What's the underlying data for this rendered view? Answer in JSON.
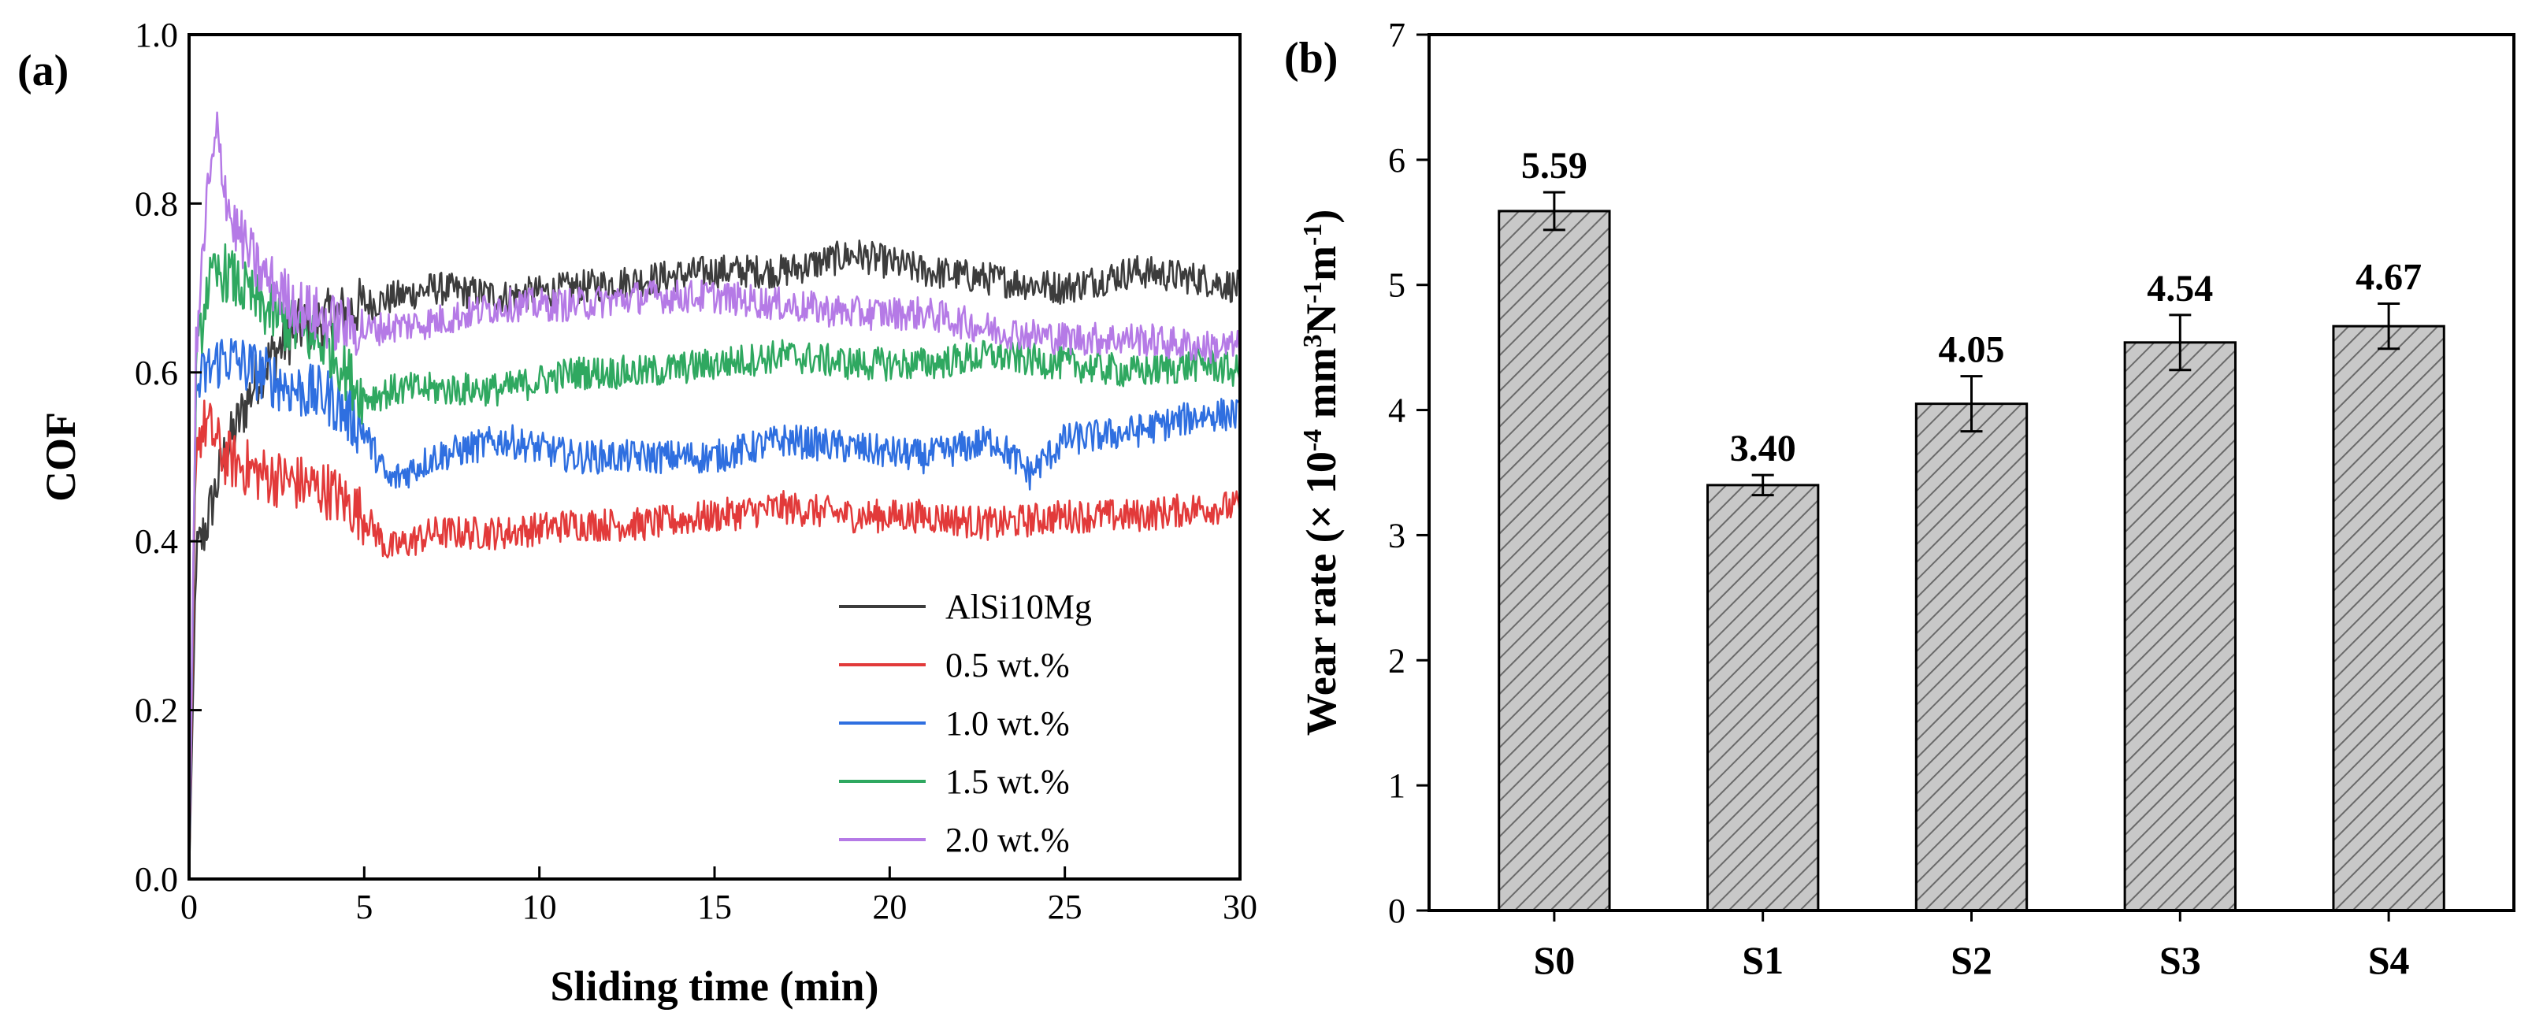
{
  "colors": {
    "AlSi10Mg": "#3c3c3c",
    "0.5 wt.%": "#e23a3a",
    "1.0 wt.%": "#2f6fe0",
    "1.5 wt.%": "#2fa860",
    "2.0 wt.%": "#b57ae6",
    "bar_fill": "#c8c8c8",
    "bar_hatch": "#6a6a6a"
  },
  "chart_data": [
    {
      "panel_label": "(a)",
      "type": "line",
      "xlabel": "Sliding time (min)",
      "ylabel": "COF",
      "xlim": [
        0,
        30
      ],
      "ylim": [
        0.0,
        1.0
      ],
      "xticks": [
        "0",
        "5",
        "10",
        "15",
        "20",
        "25",
        "30"
      ],
      "yticks": [
        "0.0",
        "0.2",
        "0.4",
        "0.6",
        "0.8",
        "1.0"
      ],
      "grid": false,
      "legend_position": "lower-right",
      "series": [
        {
          "name": "AlSi10Mg",
          "x": [
            0,
            0.2,
            0.5,
            1.0,
            2.0,
            3.0,
            5.0,
            7.0,
            9.0,
            11.0,
            13.0,
            15.0,
            17.0,
            19.0,
            21.0,
            23.0,
            25.0,
            27.0,
            29.0,
            30.0
          ],
          "values": [
            0.0,
            0.38,
            0.42,
            0.5,
            0.6,
            0.65,
            0.68,
            0.7,
            0.69,
            0.7,
            0.71,
            0.72,
            0.72,
            0.74,
            0.72,
            0.71,
            0.7,
            0.72,
            0.71,
            0.7
          ]
        },
        {
          "name": "0.5 wt.%",
          "x": [
            0,
            0.2,
            0.5,
            1.0,
            2.0,
            3.0,
            4.0,
            5.0,
            5.7,
            7.0,
            9.0,
            11.0,
            13.0,
            15.0,
            17.0,
            19.0,
            21.0,
            23.0,
            25.0,
            27.0,
            29.0,
            30.0
          ],
          "values": [
            0.0,
            0.52,
            0.54,
            0.5,
            0.48,
            0.47,
            0.46,
            0.43,
            0.39,
            0.41,
            0.41,
            0.42,
            0.42,
            0.43,
            0.44,
            0.43,
            0.43,
            0.42,
            0.43,
            0.43,
            0.44,
            0.44
          ]
        },
        {
          "name": "1.0 wt.%",
          "x": [
            0,
            0.2,
            0.5,
            1.0,
            2.0,
            3.0,
            4.0,
            5.0,
            5.7,
            7.0,
            9.0,
            11.0,
            13.0,
            15.0,
            17.0,
            19.0,
            21.0,
            23.0,
            24.0,
            25.0,
            27.0,
            29.0,
            30.0
          ],
          "values": [
            0.0,
            0.58,
            0.6,
            0.62,
            0.6,
            0.58,
            0.57,
            0.53,
            0.47,
            0.5,
            0.52,
            0.5,
            0.5,
            0.5,
            0.52,
            0.51,
            0.5,
            0.52,
            0.48,
            0.52,
            0.53,
            0.55,
            0.55
          ]
        },
        {
          "name": "1.5 wt.%",
          "x": [
            0,
            0.2,
            0.5,
            1.0,
            2.0,
            3.0,
            4.0,
            5.0,
            6.0,
            7.0,
            9.0,
            11.0,
            13.0,
            15.0,
            17.0,
            19.0,
            21.0,
            23.0,
            25.0,
            27.0,
            29.0,
            30.0
          ],
          "values": [
            0.0,
            0.6,
            0.7,
            0.72,
            0.68,
            0.65,
            0.63,
            0.57,
            0.58,
            0.58,
            0.58,
            0.6,
            0.6,
            0.61,
            0.62,
            0.61,
            0.61,
            0.62,
            0.61,
            0.6,
            0.61,
            0.6
          ]
        },
        {
          "name": "2.0 wt.%",
          "x": [
            0,
            0.2,
            0.5,
            0.8,
            1.2,
            2.0,
            3.0,
            4.0,
            5.0,
            7.0,
            9.0,
            11.0,
            13.0,
            15.0,
            17.0,
            19.0,
            21.0,
            23.0,
            25.0,
            27.0,
            29.0,
            30.0
          ],
          "values": [
            0.0,
            0.62,
            0.8,
            0.88,
            0.78,
            0.72,
            0.68,
            0.66,
            0.65,
            0.66,
            0.68,
            0.68,
            0.69,
            0.69,
            0.68,
            0.67,
            0.67,
            0.65,
            0.64,
            0.64,
            0.63,
            0.63
          ]
        }
      ]
    },
    {
      "panel_label": "(b)",
      "type": "bar",
      "xlabel": "",
      "ylabel": "Wear rate (× 10⁻⁴ mm³N⁻¹m⁻¹)",
      "ylabel_parts": {
        "pre": "Wear rate (× 10",
        "exp1": "-4",
        "mid1": " mm",
        "exp2": "3",
        "mid2": "N",
        "exp3": "-1",
        "mid3": "m",
        "exp4": "-1",
        "post": ")"
      },
      "ylim": [
        0,
        7
      ],
      "yticks": [
        "0",
        "1",
        "2",
        "3",
        "4",
        "5",
        "6",
        "7"
      ],
      "categories": [
        "S0",
        "S1",
        "S2",
        "S3",
        "S4"
      ],
      "values": [
        5.59,
        3.4,
        4.05,
        4.54,
        4.67
      ],
      "value_labels": [
        "5.59",
        "3.40",
        "4.05",
        "4.54",
        "4.67"
      ],
      "errors": [
        0.15,
        0.08,
        0.22,
        0.22,
        0.18
      ]
    }
  ]
}
